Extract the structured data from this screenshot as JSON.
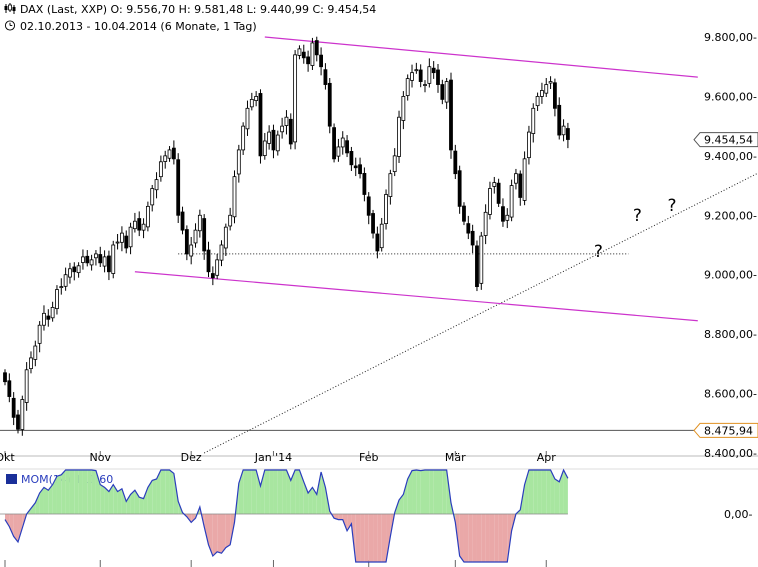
{
  "header": {
    "line1": "DAX (Last, XXP)  O: 9.556,70  H: 9.581,48  L: 9.440,99  C: 9.454,54",
    "line2": "02.10.2013 - 10.04.2014 (6 Monate, 1 Tag)"
  },
  "chart_data": [
    {
      "type": "candlestick",
      "title": "DAX (Last, XXP)",
      "subtitle": "02.10.2013 - 10.04.2014 (6 Monate, 1 Tag)",
      "ohlc_last": {
        "open": "9.556,70",
        "high": "9.581,48",
        "low": "9.440,99",
        "close": "9.454,54"
      },
      "ylim": [
        8400,
        9850
      ],
      "y_ticks": [
        9800,
        9600,
        9400,
        9200,
        9000,
        8800,
        8600,
        8400
      ],
      "y_tick_labels": [
        "9.800,00-",
        "9.600,00-",
        "9.400,00-",
        "9.200,00-",
        "9.000,00-",
        "8.800,00-",
        "8.600,00-",
        "8.400,00-"
      ],
      "x_tick_labels": [
        {
          "label": "Okt",
          "index": 0
        },
        {
          "label": "Nov",
          "index": 22
        },
        {
          "label": "Dez",
          "index": 43
        },
        {
          "label": "Jan '14",
          "index": 62
        },
        {
          "label": "Feb",
          "index": 84
        },
        {
          "label": "Mär",
          "index": 104
        },
        {
          "label": "Apr",
          "index": 125
        }
      ],
      "price_markers": [
        {
          "value": 9454.54,
          "label": "9.454,54",
          "color": "#555555"
        },
        {
          "value": 8475.94,
          "label": "8.475,94",
          "color": "#e09020"
        }
      ],
      "horizontal_line": {
        "value": 8475.94,
        "color": "#555555"
      },
      "support_line": {
        "value": 9070,
        "from_index": 40,
        "to_index": 144
      },
      "channel": {
        "color": "#cc33cc",
        "upper": [
          {
            "index": 60,
            "value": 9800
          },
          {
            "index": 160,
            "value": 9665
          }
        ],
        "lower": [
          {
            "index": 30,
            "value": 9010
          },
          {
            "index": 160,
            "value": 8845
          }
        ]
      },
      "trendline": [
        {
          "index": 46,
          "value": 8400
        },
        {
          "index": 175,
          "value": 9350
        }
      ],
      "annotations": [
        {
          "text": "?",
          "index": 136,
          "value": 9060
        },
        {
          "text": "?",
          "index": 145,
          "value": 9180
        },
        {
          "text": "?",
          "index": 153,
          "value": 9215
        }
      ],
      "closes": [
        8640,
        8590,
        8520,
        8480,
        8580,
        8680,
        8720,
        8760,
        8830,
        8870,
        8850,
        8890,
        8950,
        8960,
        9000,
        9020,
        9010,
        9030,
        9060,
        9040,
        9050,
        9070,
        9040,
        9060,
        9010,
        9100,
        9110,
        9140,
        9090,
        9160,
        9180,
        9150,
        9170,
        9230,
        9290,
        9320,
        9380,
        9400,
        9420,
        9390,
        9200,
        9150,
        9070,
        9100,
        9150,
        9200,
        9080,
        9010,
        8990,
        9050,
        9100,
        9160,
        9200,
        9330,
        9420,
        9500,
        9560,
        9590,
        9600,
        9400,
        9450,
        9480,
        9420,
        9470,
        9500,
        9530,
        9440,
        9740,
        9760,
        9730,
        9710,
        9780,
        9740,
        9700,
        9640,
        9500,
        9390,
        9430,
        9460,
        9410,
        9370,
        9360,
        9340,
        9270,
        9200,
        9140,
        9080,
        9170,
        9270,
        9340,
        9400,
        9530,
        9600,
        9660,
        9680,
        9690,
        9650,
        9640,
        9700,
        9680,
        9640,
        9590,
        9650,
        9420,
        9340,
        9230,
        9180,
        9140,
        9100,
        8960,
        9130,
        9210,
        9290,
        9310,
        9240,
        9180,
        9200,
        9300,
        9340,
        9260,
        9390,
        9480,
        9560,
        9600,
        9620,
        9640,
        9650,
        9560,
        9470,
        9500,
        9455
      ],
      "momentum_panel": {
        "title": "MOM(14)",
        "value_label": "111,60",
        "zero_label": "0,00-",
        "legend_color": "#1a2f99",
        "positive_fill": "#a8e6a0",
        "negative_fill": "#eaa8a8",
        "line_color": "#2a3dbd"
      }
    }
  ]
}
